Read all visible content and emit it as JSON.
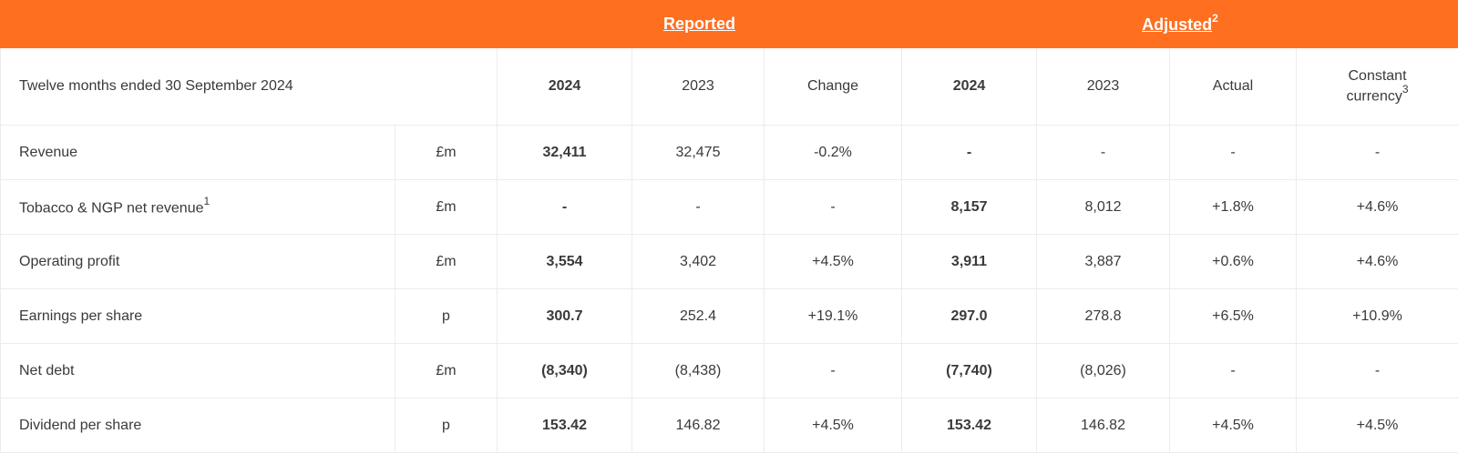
{
  "header": {
    "reported": "Reported",
    "adjusted": "Adjusted",
    "adjusted_sup": "2"
  },
  "subheader": {
    "period": "Twelve months ended 30 September 2024",
    "cols": [
      "2024",
      "2023",
      "Change",
      "2024",
      "2023",
      "Actual"
    ],
    "constant_line1": "Constant",
    "constant_line2": "currency",
    "constant_sup": "3"
  },
  "rows": [
    {
      "label": "Revenue",
      "sup": "",
      "unit": "£m",
      "values": [
        "32,411",
        "32,475",
        "-0.2%",
        "-",
        "-",
        "-",
        "-"
      ]
    },
    {
      "label": "Tobacco & NGP net revenue",
      "sup": "1",
      "unit": "£m",
      "values": [
        "-",
        "-",
        "-",
        "8,157",
        "8,012",
        "+1.8%",
        "+4.6%"
      ]
    },
    {
      "label": "Operating profit",
      "sup": "",
      "unit": "£m",
      "values": [
        "3,554",
        "3,402",
        "+4.5%",
        "3,911",
        "3,887",
        "+0.6%",
        "+4.6%"
      ]
    },
    {
      "label": "Earnings per share",
      "sup": "",
      "unit": "p",
      "values": [
        "300.7",
        "252.4",
        "+19.1%",
        "297.0",
        "278.8",
        "+6.5%",
        "+10.9%"
      ]
    },
    {
      "label": "Net debt",
      "sup": "",
      "unit": "£m",
      "values": [
        "(8,340)",
        "(8,438)",
        "-",
        "(7,740)",
        "(8,026)",
        "-",
        "-"
      ]
    },
    {
      "label": "Dividend per share",
      "sup": "",
      "unit": "p",
      "values": [
        "153.42",
        "146.82",
        "+4.5%",
        "153.42",
        "146.82",
        "+4.5%",
        "+4.5%"
      ]
    }
  ],
  "colors": {
    "header_bg": "#ff6f20",
    "header_text": "#ffffff",
    "text": "#3a3a3a",
    "border": "#ececec"
  }
}
